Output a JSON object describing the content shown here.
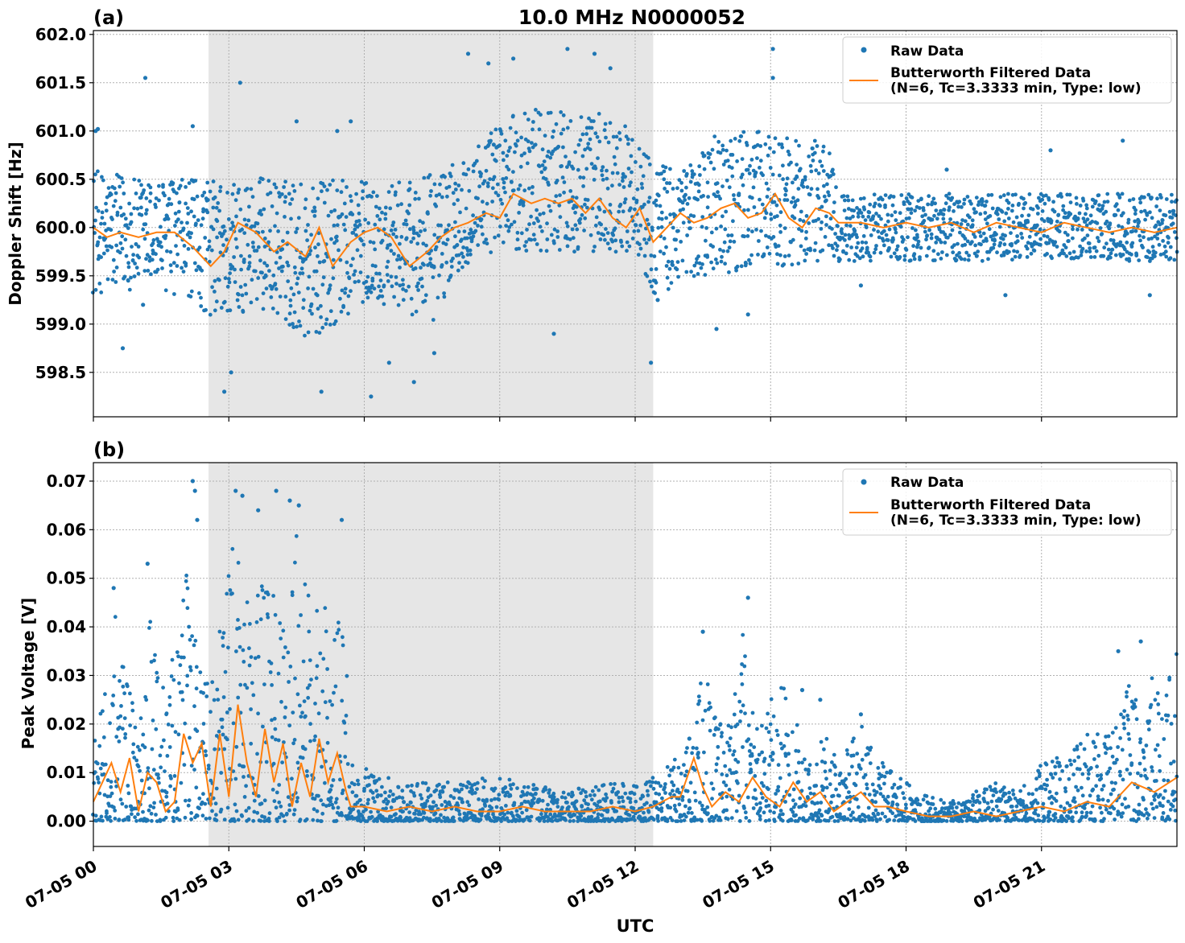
{
  "figure": {
    "title": "10.0 MHz N0000052",
    "xlabel": "UTC"
  },
  "chart_data": [
    {
      "panel_label": "(a)",
      "type": "scatter",
      "ylabel": "Doppler Shift [Hz]",
      "ylim": [
        598.04,
        602.04
      ],
      "yticks": [
        "598.5",
        "599.0",
        "599.5",
        "600.0",
        "600.5",
        "601.0",
        "601.5",
        "602.0"
      ],
      "ytick_values": [
        598.5,
        599.0,
        599.5,
        600.0,
        600.5,
        601.0,
        601.5,
        602.0
      ],
      "xlim_hours": [
        0,
        24
      ],
      "grid": true,
      "legend_placement": "top-right",
      "shaded_region_hours": [
        2.55,
        12.4
      ],
      "series": [
        {
          "name": "Raw Data",
          "kind": "points",
          "color": "#1f77b4",
          "envelope_x": [
            0,
            1,
            2,
            2.5,
            3,
            3.5,
            4,
            4.5,
            5,
            5.5,
            6,
            6.5,
            7,
            7.5,
            8,
            8.5,
            9,
            9.5,
            10,
            10.5,
            11,
            11.5,
            12,
            12.4,
            13,
            13.5,
            14,
            14.5,
            15,
            15.5,
            16,
            16.3,
            16.5,
            17,
            18,
            19,
            20,
            21,
            22,
            23,
            24
          ],
          "upper": [
            600.6,
            600.5,
            600.5,
            600.5,
            600.5,
            600.55,
            600.5,
            600.5,
            600.5,
            600.5,
            600.5,
            600.45,
            600.5,
            600.55,
            600.7,
            600.9,
            601.1,
            601.2,
            601.3,
            601.2,
            601.2,
            601.15,
            601.0,
            600.7,
            600.6,
            600.9,
            601.0,
            601.0,
            601.0,
            600.9,
            600.9,
            601.0,
            600.35,
            600.35,
            600.35,
            600.35,
            600.35,
            600.35,
            600.35,
            600.35,
            600.35
          ],
          "lower": [
            599.3,
            599.35,
            599.3,
            599.1,
            599.0,
            599.2,
            599.1,
            598.9,
            598.8,
            599.0,
            599.2,
            599.2,
            599.1,
            599.0,
            599.5,
            599.7,
            599.75,
            599.75,
            599.75,
            599.75,
            599.75,
            599.75,
            599.75,
            599.3,
            599.4,
            599.5,
            599.5,
            599.55,
            599.6,
            599.6,
            599.6,
            599.6,
            599.65,
            599.65,
            599.65,
            599.65,
            599.65,
            599.65,
            599.65,
            599.65,
            599.65
          ],
          "outliers": [
            [
              0.05,
              601.0
            ],
            [
              0.1,
              601.02
            ],
            [
              1.15,
              601.55
            ],
            [
              2.2,
              601.05
            ],
            [
              3.25,
              601.5
            ],
            [
              4.5,
              601.1
            ],
            [
              5.05,
              598.3
            ],
            [
              5.4,
              601.0
            ],
            [
              5.7,
              601.1
            ],
            [
              7.1,
              598.4
            ],
            [
              8.3,
              601.8
            ],
            [
              8.75,
              601.7
            ],
            [
              9.3,
              601.75
            ],
            [
              10.5,
              601.85
            ],
            [
              11.1,
              601.8
            ],
            [
              11.45,
              601.65
            ],
            [
              10.2,
              598.9
            ],
            [
              7.55,
              598.7
            ],
            [
              2.9,
              598.3
            ],
            [
              3.05,
              598.5
            ],
            [
              6.15,
              598.25
            ],
            [
              6.55,
              598.6
            ],
            [
              15.05,
              601.85
            ],
            [
              15.05,
              601.55
            ],
            [
              14.5,
              599.1
            ],
            [
              13.8,
              598.95
            ],
            [
              12.35,
              598.6
            ],
            [
              12.5,
              599.25
            ],
            [
              0.65,
              598.75
            ],
            [
              1.1,
              599.2
            ],
            [
              21.2,
              600.8
            ],
            [
              22.8,
              600.9
            ],
            [
              18.9,
              600.6
            ],
            [
              17.0,
              599.4
            ],
            [
              20.2,
              599.3
            ],
            [
              23.4,
              599.3
            ]
          ]
        },
        {
          "name": "Butterworth Filtered Data\n(N=6, Tc=3.3333 min, Type: low)",
          "kind": "line",
          "color": "#ff7f0e",
          "x": [
            0,
            0.3,
            0.6,
            1.0,
            1.4,
            1.8,
            2.2,
            2.6,
            2.9,
            3.2,
            3.6,
            4.0,
            4.3,
            4.7,
            5.0,
            5.3,
            5.7,
            6.0,
            6.3,
            6.6,
            7.0,
            7.4,
            7.7,
            8.0,
            8.3,
            8.7,
            9.0,
            9.3,
            9.7,
            10.0,
            10.3,
            10.6,
            10.9,
            11.2,
            11.5,
            11.8,
            12.1,
            12.4,
            12.7,
            13.0,
            13.3,
            13.6,
            13.9,
            14.2,
            14.5,
            14.8,
            15.1,
            15.4,
            15.7,
            16.0,
            16.3,
            16.5,
            17,
            17.5,
            18,
            18.5,
            19,
            19.5,
            20,
            20.5,
            21,
            21.5,
            22,
            22.5,
            23,
            23.5,
            24
          ],
          "y": [
            600.0,
            599.9,
            599.95,
            599.9,
            599.95,
            599.95,
            599.8,
            599.6,
            599.75,
            600.05,
            599.95,
            599.75,
            599.85,
            599.7,
            600.0,
            599.6,
            599.85,
            599.95,
            600.0,
            599.9,
            599.6,
            599.75,
            599.9,
            600.0,
            600.05,
            600.15,
            600.1,
            600.35,
            600.25,
            600.3,
            600.25,
            600.3,
            600.15,
            600.3,
            600.1,
            600.0,
            600.2,
            599.85,
            600.0,
            600.15,
            600.05,
            600.1,
            600.2,
            600.25,
            600.1,
            600.15,
            600.35,
            600.1,
            600.0,
            600.2,
            600.15,
            600.05,
            600.05,
            600.0,
            600.05,
            600.0,
            600.05,
            599.95,
            600.05,
            600.0,
            599.95,
            600.05,
            600.0,
            599.95,
            600.0,
            599.95,
            600.0
          ]
        }
      ]
    },
    {
      "panel_label": "(b)",
      "type": "scatter",
      "ylabel": "Peak Voltage [V]",
      "ylim": [
        -0.0052,
        0.0738
      ],
      "yticks": [
        "0.00",
        "0.01",
        "0.02",
        "0.03",
        "0.04",
        "0.05",
        "0.06",
        "0.07"
      ],
      "ytick_values": [
        0.0,
        0.01,
        0.02,
        0.03,
        0.04,
        0.05,
        0.06,
        0.07
      ],
      "xlim_hours": [
        0,
        24
      ],
      "grid": true,
      "legend_placement": "top-right",
      "shaded_region_hours": [
        2.55,
        12.4
      ],
      "series": [
        {
          "name": "Raw Data",
          "kind": "points",
          "color": "#1f77b4",
          "envelope_x": [
            0,
            0.3,
            0.5,
            0.7,
            1.0,
            1.3,
            1.6,
            1.9,
            2.1,
            2.3,
            2.5,
            2.7,
            3.0,
            3.3,
            3.6,
            3.9,
            4.2,
            4.5,
            4.8,
            5.1,
            5.4,
            5.6,
            5.65,
            6.0,
            6.5,
            7.0,
            7.5,
            8.0,
            8.5,
            9.0,
            9.5,
            10.0,
            10.5,
            11.0,
            11.5,
            12.0,
            12.4,
            12.8,
            13.2,
            13.5,
            13.8,
            14.1,
            14.4,
            14.7,
            15.0,
            15.3,
            15.6,
            15.9,
            16.2,
            16.5,
            17.0,
            17.5,
            18.0,
            18.5,
            19.0,
            19.5,
            20.0,
            20.5,
            21.0,
            21.5,
            22.0,
            22.5,
            23.0,
            23.5,
            24
          ],
          "upper": [
            0.022,
            0.03,
            0.045,
            0.03,
            0.02,
            0.045,
            0.03,
            0.04,
            0.06,
            0.035,
            0.03,
            0.03,
            0.065,
            0.05,
            0.045,
            0.065,
            0.04,
            0.06,
            0.045,
            0.045,
            0.04,
            0.06,
            0.012,
            0.011,
            0.009,
            0.008,
            0.008,
            0.008,
            0.009,
            0.009,
            0.008,
            0.007,
            0.007,
            0.007,
            0.008,
            0.008,
            0.009,
            0.012,
            0.016,
            0.036,
            0.02,
            0.02,
            0.045,
            0.02,
            0.025,
            0.028,
            0.02,
            0.014,
            0.018,
            0.012,
            0.02,
            0.012,
            0.008,
            0.006,
            0.004,
            0.006,
            0.008,
            0.006,
            0.012,
            0.014,
            0.018,
            0.02,
            0.03,
            0.03,
            0.038
          ],
          "outliers": [
            [
              2.2,
              0.07
            ],
            [
              2.25,
              0.068
            ],
            [
              2.3,
              0.062
            ],
            [
              3.15,
              0.068
            ],
            [
              3.3,
              0.067
            ],
            [
              3.65,
              0.064
            ],
            [
              4.05,
              0.068
            ],
            [
              4.35,
              0.066
            ],
            [
              4.55,
              0.065
            ],
            [
              5.5,
              0.062
            ],
            [
              1.2,
              0.053
            ],
            [
              0.45,
              0.048
            ],
            [
              14.5,
              0.046
            ],
            [
              13.5,
              0.039
            ],
            [
              16.1,
              0.025
            ],
            [
              23.2,
              0.037
            ],
            [
              22.7,
              0.035
            ],
            [
              17.0,
              0.022
            ],
            [
              13.2,
              0.017
            ],
            [
              15.7,
              0.027
            ]
          ]
        },
        {
          "name": "Butterworth Filtered Data\n(N=6, Tc=3.3333 min, Type: low)",
          "kind": "line",
          "color": "#ff7f0e",
          "x": [
            0,
            0.2,
            0.4,
            0.6,
            0.8,
            1.0,
            1.2,
            1.4,
            1.6,
            1.8,
            2.0,
            2.2,
            2.4,
            2.6,
            2.8,
            3.0,
            3.2,
            3.4,
            3.6,
            3.8,
            4.0,
            4.2,
            4.4,
            4.6,
            4.8,
            5.0,
            5.2,
            5.4,
            5.6,
            5.7,
            6.0,
            6.5,
            7.0,
            7.5,
            8.0,
            8.5,
            9.0,
            9.5,
            10.0,
            10.5,
            11.0,
            11.5,
            12.0,
            12.4,
            12.8,
            13.0,
            13.3,
            13.5,
            13.7,
            14.0,
            14.3,
            14.6,
            14.9,
            15.2,
            15.5,
            15.8,
            16.1,
            16.4,
            16.7,
            17.0,
            17.3,
            17.6,
            18.0,
            18.5,
            19.0,
            19.5,
            20.0,
            20.5,
            21.0,
            21.5,
            22.0,
            22.5,
            23.0,
            23.5,
            24
          ],
          "y": [
            0.004,
            0.008,
            0.012,
            0.006,
            0.013,
            0.002,
            0.01,
            0.008,
            0.002,
            0.004,
            0.018,
            0.012,
            0.016,
            0.003,
            0.018,
            0.005,
            0.024,
            0.012,
            0.005,
            0.019,
            0.008,
            0.016,
            0.003,
            0.012,
            0.005,
            0.017,
            0.008,
            0.014,
            0.006,
            0.003,
            0.003,
            0.002,
            0.003,
            0.002,
            0.003,
            0.002,
            0.002,
            0.003,
            0.002,
            0.002,
            0.002,
            0.003,
            0.002,
            0.003,
            0.005,
            0.005,
            0.013,
            0.007,
            0.003,
            0.006,
            0.004,
            0.009,
            0.005,
            0.003,
            0.008,
            0.004,
            0.006,
            0.002,
            0.004,
            0.006,
            0.003,
            0.003,
            0.002,
            0.001,
            0.001,
            0.002,
            0.001,
            0.002,
            0.003,
            0.002,
            0.004,
            0.003,
            0.008,
            0.006,
            0.009
          ]
        }
      ]
    }
  ],
  "xaxis": {
    "tick_hours": [
      0,
      3,
      6,
      9,
      12,
      15,
      18,
      21
    ],
    "tick_labels": [
      "07-05 00",
      "07-05 03",
      "07-05 06",
      "07-05 09",
      "07-05 12",
      "07-05 15",
      "07-05 18",
      "07-05 21"
    ]
  },
  "colors": {
    "raw": "#1f77b4",
    "filtered": "#ff7f0e",
    "shade": "#e6e6e6",
    "grid": "#b0b0b0"
  }
}
